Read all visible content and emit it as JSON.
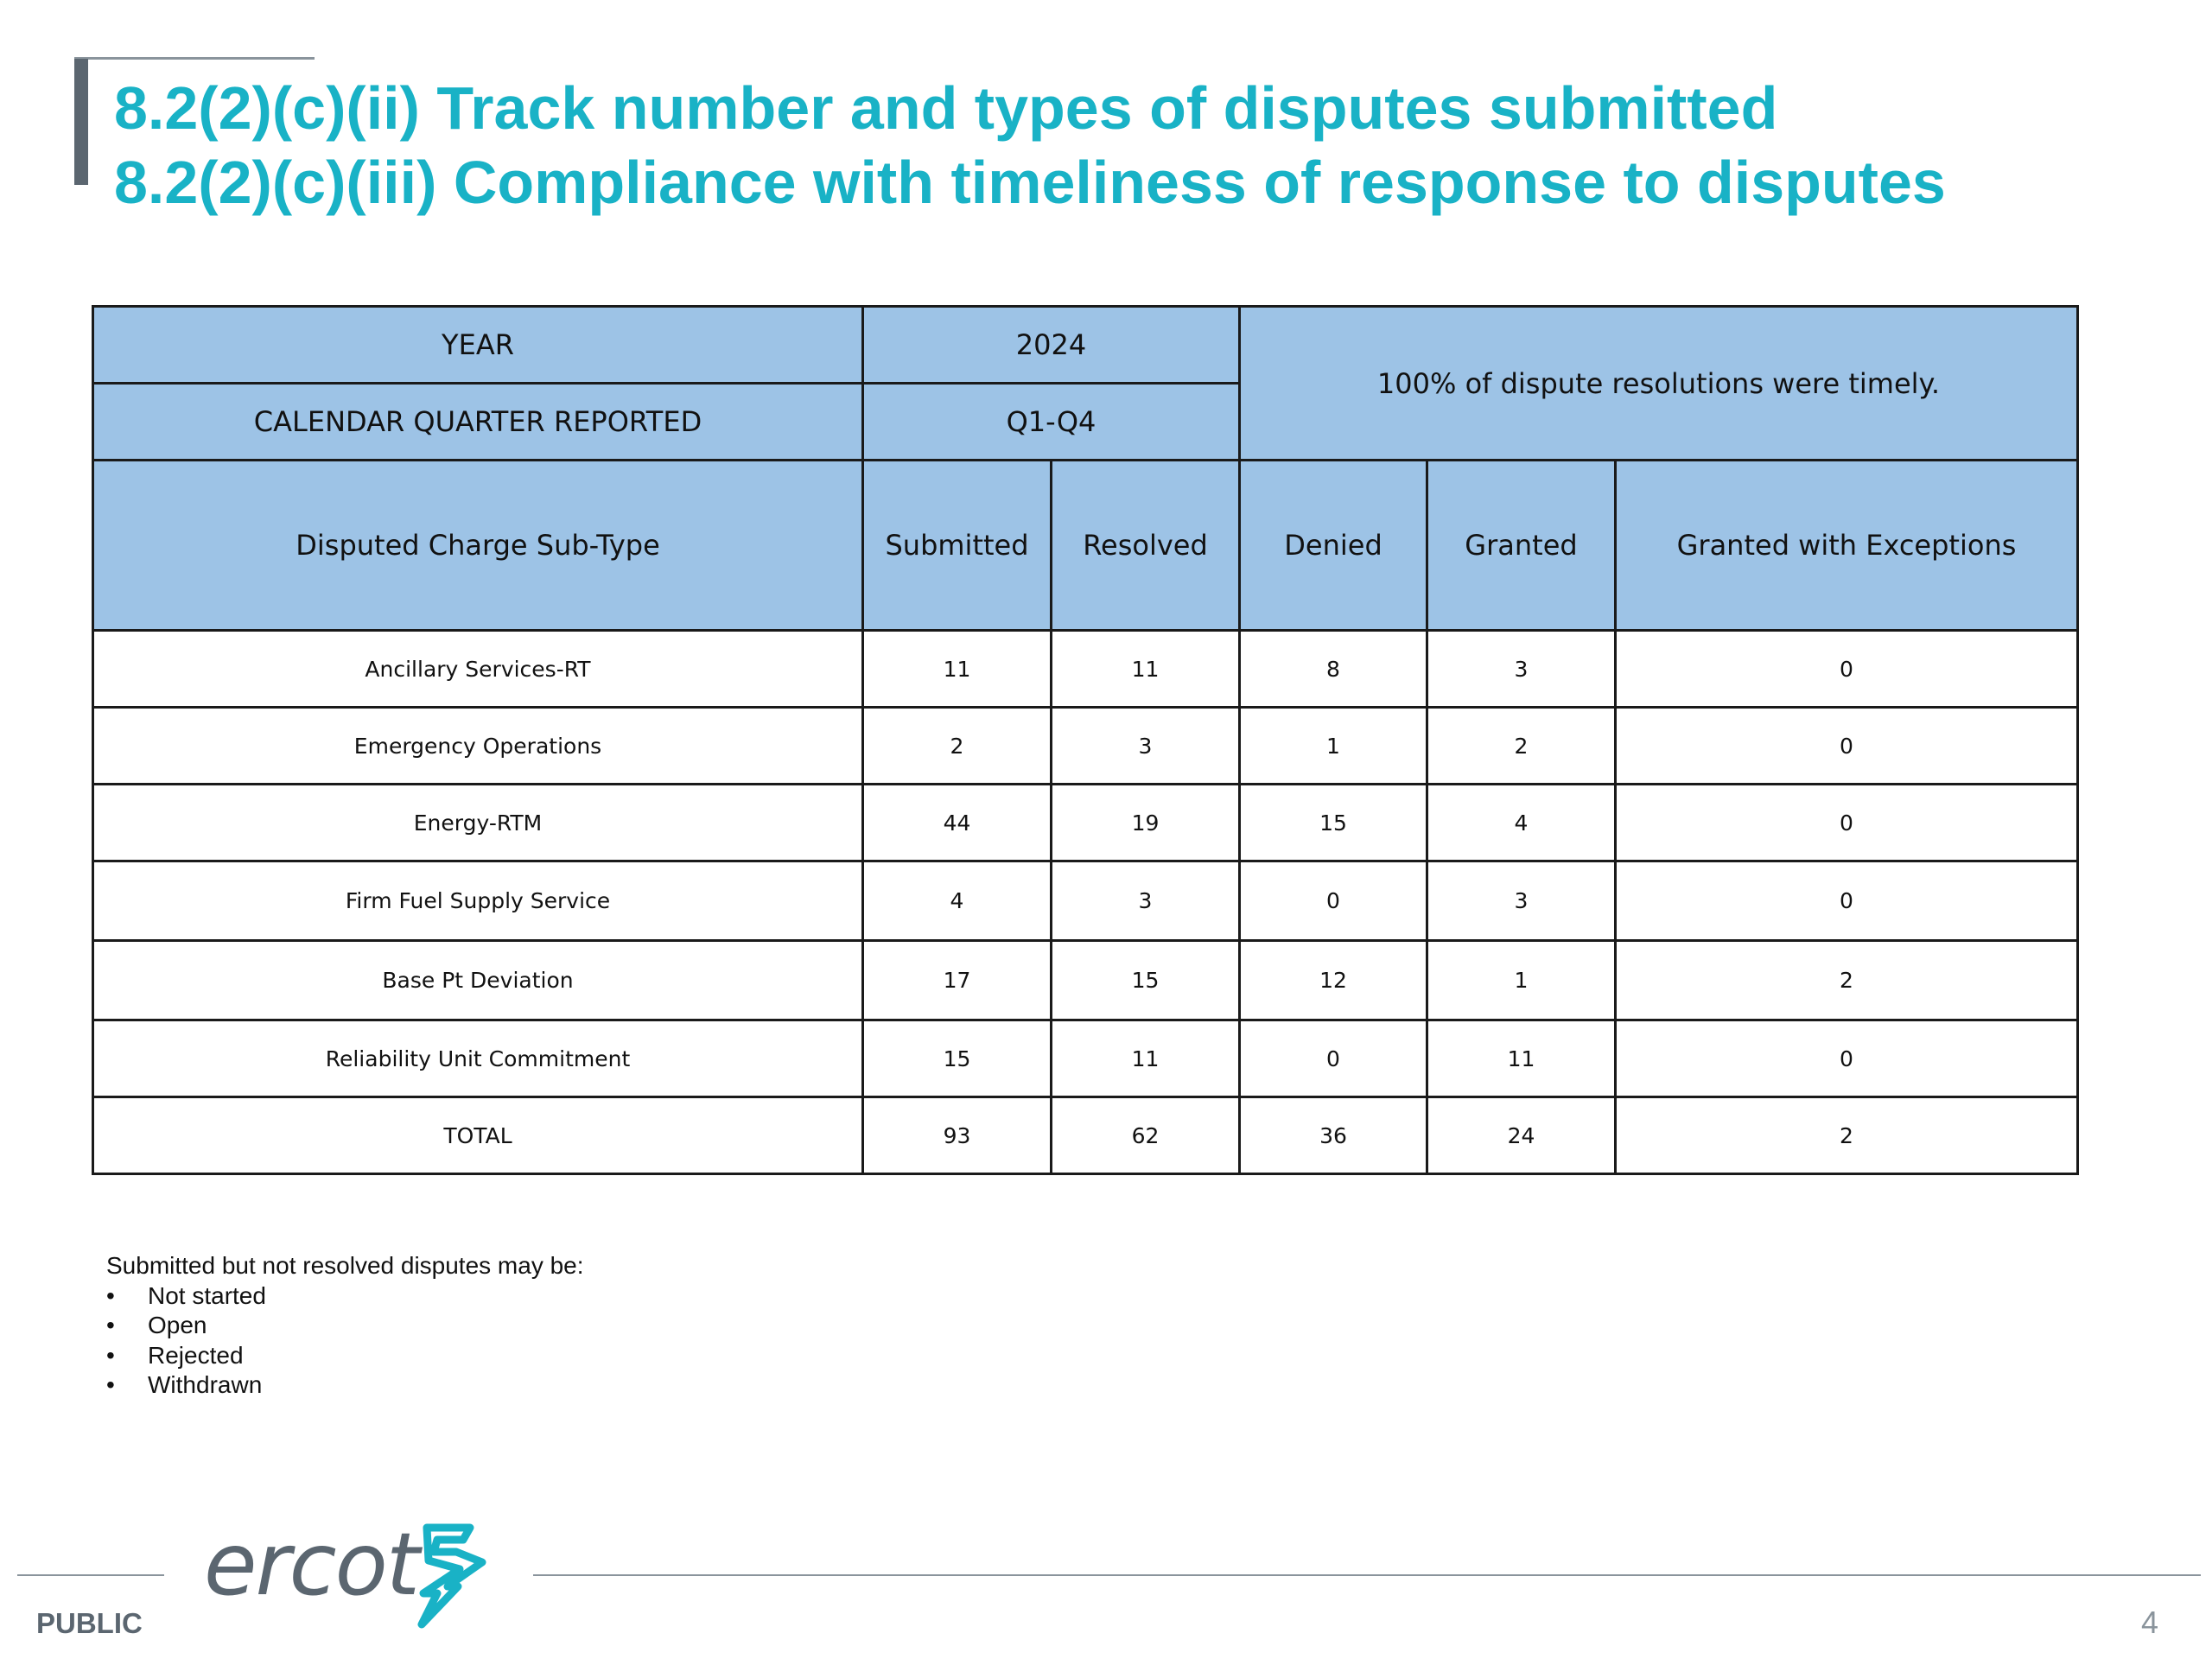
{
  "title": {
    "line1": "8.2(2)(c)(ii) Track number and types of disputes submitted",
    "line2": "8.2(2)(c)(iii) Compliance with timeliness of response to disputes"
  },
  "table": {
    "year_label": "YEAR",
    "year_value": "2024",
    "quarter_label": "CALENDAR QUARTER REPORTED",
    "quarter_value": "Q1-Q4",
    "timeliness_note": "100% of dispute resolutions were timely.",
    "columns": [
      "Disputed Charge Sub-Type",
      "Submitted",
      "Resolved",
      "Denied",
      "Granted",
      "Granted with Exceptions"
    ],
    "rows": [
      [
        "Ancillary Services-RT",
        "11",
        "11",
        "8",
        "3",
        "0"
      ],
      [
        "Emergency Operations",
        "2",
        "3",
        "1",
        "2",
        "0"
      ],
      [
        "Energy-RTM",
        "44",
        "19",
        "15",
        "4",
        "0"
      ],
      [
        "Firm Fuel Supply Service",
        "4",
        "3",
        "0",
        "3",
        "0"
      ],
      [
        "Base Pt Deviation",
        "17",
        "15",
        "12",
        "1",
        "2"
      ],
      [
        "Reliability Unit Commitment",
        "15",
        "11",
        "0",
        "11",
        "0"
      ],
      [
        "TOTAL",
        "93",
        "62",
        "36",
        "24",
        "2"
      ]
    ]
  },
  "notes": {
    "intro": "Submitted but not resolved disputes may be:",
    "bullet": "•",
    "items": [
      "Not started",
      "Open",
      "Rejected",
      "Withdrawn"
    ]
  },
  "footer": {
    "logo_text": "ercot",
    "classification": "PUBLIC",
    "page_number": "4"
  },
  "colors": {
    "title": "#19b2c6",
    "header_fill": "#9dc3e6",
    "brand_gray": "#5b6670",
    "logo_accent": "#19b2c6"
  },
  "icons": {
    "logo_mark": "ercot-lightning-mark-icon"
  }
}
